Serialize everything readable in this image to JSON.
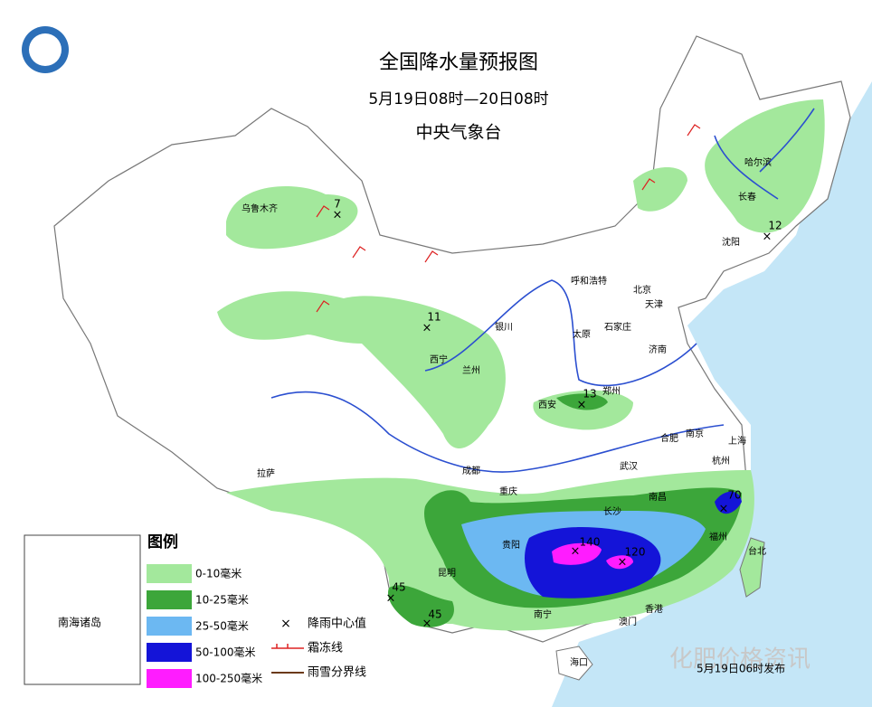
{
  "header": {
    "title": "全国降水量预报图",
    "subtitle": "5月19日08时—20日08时",
    "issuer": "中央气象台"
  },
  "legend": {
    "title": "图例",
    "items": [
      {
        "label": "0-10毫米",
        "color": "#a3e89c"
      },
      {
        "label": "10-25毫米",
        "color": "#3ca63a"
      },
      {
        "label": "25-50毫米",
        "color": "#6cb8f2"
      },
      {
        "label": "50-100毫米",
        "color": "#1414d8"
      },
      {
        "label": "100-250毫米",
        "color": "#ff1cff"
      }
    ],
    "symbols": [
      {
        "label": "降雨中心值"
      },
      {
        "label": "霜冻线"
      },
      {
        "label": "雨雪分界线"
      }
    ]
  },
  "cities": [
    {
      "name": "乌鲁木齐"
    },
    {
      "name": "哈尔滨"
    },
    {
      "name": "长春"
    },
    {
      "name": "沈阳"
    },
    {
      "name": "呼和浩特"
    },
    {
      "name": "北京"
    },
    {
      "name": "天津"
    },
    {
      "name": "石家庄"
    },
    {
      "name": "太原"
    },
    {
      "name": "济南"
    },
    {
      "name": "银川"
    },
    {
      "name": "西宁"
    },
    {
      "name": "兰州"
    },
    {
      "name": "西安"
    },
    {
      "name": "郑州"
    },
    {
      "name": "合肥"
    },
    {
      "name": "南京"
    },
    {
      "name": "上海"
    },
    {
      "name": "杭州"
    },
    {
      "name": "武汉"
    },
    {
      "name": "成都"
    },
    {
      "name": "重庆"
    },
    {
      "name": "长沙"
    },
    {
      "name": "南昌"
    },
    {
      "name": "福州"
    },
    {
      "name": "台北"
    },
    {
      "name": "贵阳"
    },
    {
      "name": "昆明"
    },
    {
      "name": "南宁"
    },
    {
      "name": "香港"
    },
    {
      "name": "澳门"
    },
    {
      "name": "海口"
    },
    {
      "name": "拉萨"
    }
  ],
  "centers": [
    {
      "value": 7
    },
    {
      "value": 12
    },
    {
      "value": 11
    },
    {
      "value": 13
    },
    {
      "value": 70
    },
    {
      "value": 140
    },
    {
      "value": 120
    },
    {
      "value": 45
    },
    {
      "value": 45
    }
  ],
  "inset": {
    "label": "南海诸岛"
  },
  "watermark": {
    "text": "化肥价格资讯",
    "stamp": "5月19日06时发布"
  }
}
